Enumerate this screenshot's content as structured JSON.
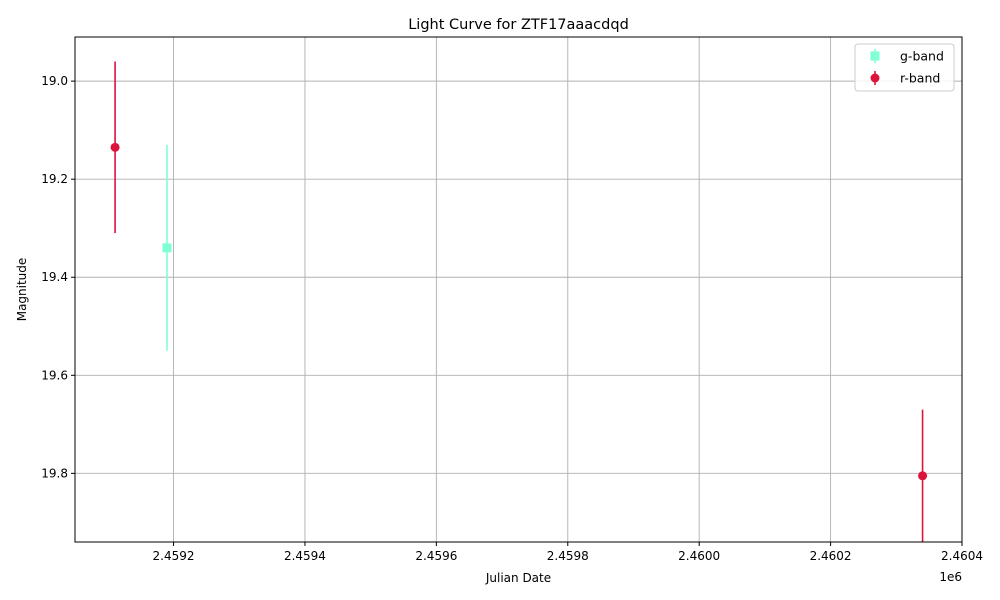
{
  "chart_data": {
    "type": "scatter",
    "title": "Light Curve for ZTF17aaacdqd",
    "xlabel": "Julian Date",
    "ylabel": "Magnitude",
    "x_offset_label": "1e6",
    "xlim": [
      2459050,
      2460400
    ],
    "ylim": [
      19.94,
      18.91
    ],
    "y_inverted": true,
    "grid": true,
    "legend_position": "top-right",
    "x_ticks": [
      2459200,
      2459400,
      2459600,
      2459800,
      2460000,
      2460200,
      2460400
    ],
    "x_tick_labels": [
      "2.4592",
      "2.4594",
      "2.4596",
      "2.4598",
      "2.4600",
      "2.4602",
      "2.4604"
    ],
    "y_ticks": [
      19.0,
      19.2,
      19.4,
      19.6,
      19.8
    ],
    "y_tick_labels": [
      "19.0",
      "19.2",
      "19.4",
      "19.6",
      "19.8"
    ],
    "series": [
      {
        "name": "g-band",
        "color": "#7fffd4",
        "marker": "square",
        "points": [
          {
            "x": 2459190,
            "y": 19.34,
            "err": 0.21
          }
        ]
      },
      {
        "name": "r-band",
        "color": "#dc143c",
        "marker": "circle",
        "points": [
          {
            "x": 2459111,
            "y": 19.135,
            "err": 0.175
          },
          {
            "x": 2460340,
            "y": 19.805,
            "err": 0.135
          }
        ]
      }
    ]
  }
}
